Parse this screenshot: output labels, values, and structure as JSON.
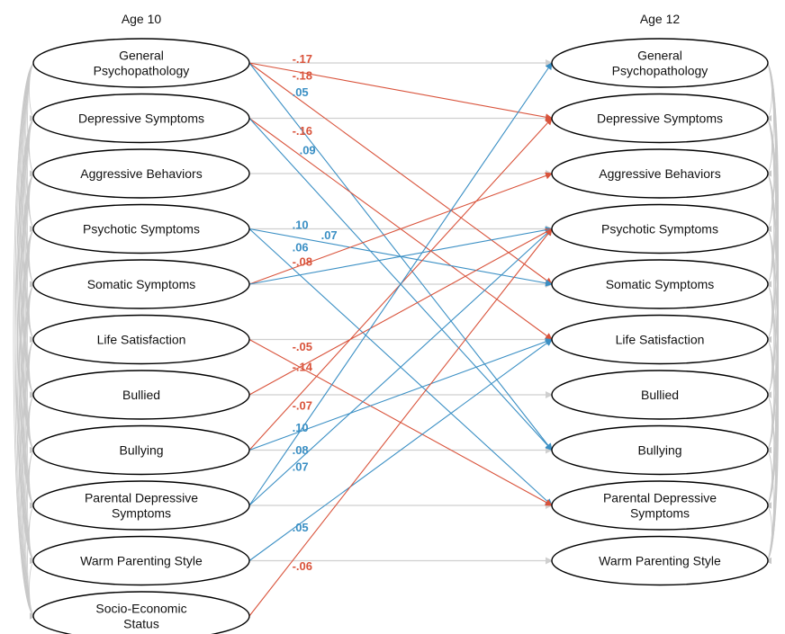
{
  "titles": {
    "left": "Age 10",
    "right": "Age 12"
  },
  "colors": {
    "positive": "#3a8fc4",
    "negative": "#d9533b",
    "stability": "#cfcfcf",
    "covariance": "#c8c8c8",
    "node_border": "#000000"
  },
  "nodes_age10": [
    {
      "id": "gp",
      "lines": [
        "General",
        "Psychopathology"
      ]
    },
    {
      "id": "dep",
      "lines": [
        "Depressive Symptoms"
      ]
    },
    {
      "id": "agg",
      "lines": [
        "Aggressive Behaviors"
      ]
    },
    {
      "id": "psy",
      "lines": [
        "Psychotic Symptoms"
      ]
    },
    {
      "id": "som",
      "lines": [
        "Somatic Symptoms"
      ]
    },
    {
      "id": "life",
      "lines": [
        "Life Satisfaction"
      ]
    },
    {
      "id": "bullied",
      "lines": [
        "Bullied"
      ]
    },
    {
      "id": "bullying",
      "lines": [
        "Bullying"
      ]
    },
    {
      "id": "pds",
      "lines": [
        "Parental Depressive",
        "Symptoms"
      ]
    },
    {
      "id": "warm",
      "lines": [
        "Warm Parenting Style"
      ]
    },
    {
      "id": "ses",
      "lines": [
        "Socio-Economic",
        "Status"
      ]
    }
  ],
  "nodes_age12": [
    {
      "id": "gp",
      "lines": [
        "General",
        "Psychopathology"
      ]
    },
    {
      "id": "dep",
      "lines": [
        "Depressive Symptoms"
      ]
    },
    {
      "id": "agg",
      "lines": [
        "Aggressive Behaviors"
      ]
    },
    {
      "id": "psy",
      "lines": [
        "Psychotic Symptoms"
      ]
    },
    {
      "id": "som",
      "lines": [
        "Somatic Symptoms"
      ]
    },
    {
      "id": "life",
      "lines": [
        "Life Satisfaction"
      ]
    },
    {
      "id": "bullied",
      "lines": [
        "Bullied"
      ]
    },
    {
      "id": "bullying",
      "lines": [
        "Bullying"
      ]
    },
    {
      "id": "pds",
      "lines": [
        "Parental Depressive",
        "Symptoms"
      ]
    },
    {
      "id": "warm",
      "lines": [
        "Warm Parenting Style"
      ]
    }
  ],
  "cross_paths": [
    {
      "from": 0,
      "to": 1,
      "coef": "-.17",
      "sign": "neg"
    },
    {
      "from": 0,
      "to": 4,
      "coef": "-.18",
      "sign": "neg"
    },
    {
      "from": 0,
      "to": 7,
      "coef": ".05",
      "sign": "pos"
    },
    {
      "from": 1,
      "to": 5,
      "coef": "-.16",
      "sign": "neg"
    },
    {
      "from": 1,
      "to": 7,
      "coef": ".09",
      "sign": "pos"
    },
    {
      "from": 3,
      "to": 4,
      "coef": ".10",
      "sign": "pos"
    },
    {
      "from": 3,
      "to": 8,
      "coef": ".06",
      "sign": "pos"
    },
    {
      "from": 4,
      "to": 2,
      "coef": "-.08",
      "sign": "neg"
    },
    {
      "from": 4,
      "to": 3,
      "coef": ".07",
      "sign": "pos"
    },
    {
      "from": 5,
      "to": 8,
      "coef": "-.05",
      "sign": "neg"
    },
    {
      "from": 6,
      "to": 3,
      "coef": "-.14",
      "sign": "neg"
    },
    {
      "from": 7,
      "to": 1,
      "coef": "-.07",
      "sign": "neg"
    },
    {
      "from": 7,
      "to": 5,
      "coef": ".10",
      "sign": "pos"
    },
    {
      "from": 8,
      "to": 0,
      "coef": ".08",
      "sign": "pos"
    },
    {
      "from": 8,
      "to": 3,
      "coef": ".07",
      "sign": "pos"
    },
    {
      "from": 9,
      "to": 5,
      "coef": ".05",
      "sign": "pos"
    },
    {
      "from": 10,
      "to": 3,
      "coef": "-.06",
      "sign": "neg"
    }
  ]
}
